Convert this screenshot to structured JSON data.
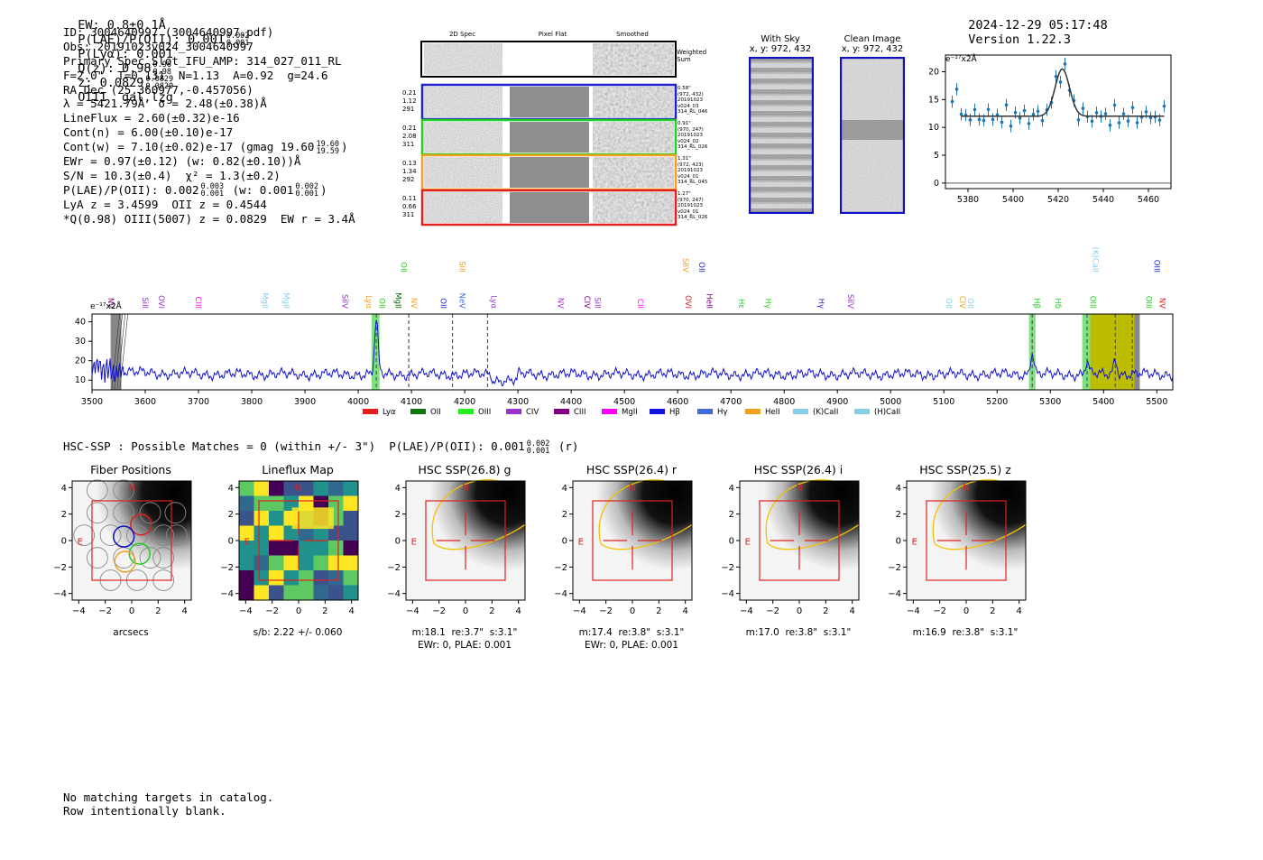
{
  "header": {
    "ew": "EW: 0.8±0.1Å",
    "plae_label": "P(LAE)/P(OII): 0.001",
    "plae_hi": "0.002",
    "plae_lo": "0.001",
    "plya": "P(Lyα): 0.001",
    "q_label": "Q(z): 0.98",
    "q_hi": "0.98",
    "q_lo": "0.98",
    "z_label": "z: 0.0829",
    "z_hi": "0.0829",
    "z_lo": "0.0829",
    "classification": "OIII  gal,lzg",
    "timestamp": "2024-12-29 05:17:48",
    "version": "Version 1.22.3"
  },
  "info": {
    "line1": "ID: 3004640997 (3004640997.pdf)",
    "line2": "Obs: 20191023v024_3004640997",
    "line3": "Primary Spec_Slot_IFU_AMP: 314_027_011_RL",
    "line4": "F=2.0\"  T=0.131  N=1.13  A=0.92  g=24.6",
    "line5": "RA,Dec (25.360977,-0.457056)",
    "line6": "λ = 5421.79Å  σ = 2.48(±0.38)Å",
    "line7": "LineFlux = 2.60(±0.32)e-16",
    "line8": "Cont(n) = 6.00(±0.10)e-17",
    "line9": "Cont(w) = 7.10(±0.02)e-17 (gmag 19.60",
    "line9_hi": "19.60",
    "line9_lo": "19.59",
    "line9_end": ")",
    "line10": "EWr = 0.97(±0.12) (w: 0.82(±0.10))Å",
    "line11": "S/N = 10.3(±0.4)  χ² = 1.3(±0.2)",
    "line12": "P(LAE)/P(OII): 0.002",
    "line12_hi": "0.003",
    "line12_lo": "0.001",
    "line12_mid": "(w: 0.001",
    "line12_hi2": "0.002",
    "line12_lo2": "0.001",
    "line12_end": ")",
    "line13": "LyA z = 3.4599  OII z = 0.4544",
    "line14": "*Q(0.98) OIII(5007) z = 0.0829  EW r = 3.4Å"
  },
  "cutouts": {
    "col_2d": "2D Spec",
    "col_flat": "Pixel Flat",
    "col_smooth": "Smoothed",
    "weighted": "Weighted Sum",
    "rows": [
      {
        "left1": "0.21",
        "left2": "1.12",
        "left3": "291",
        "r1": "0.58\"",
        "r2": "(972, 432)",
        "r3": "20191023",
        "r4": "v024_03",
        "r5": "314_RL_046",
        "color": "#1f1fd0"
      },
      {
        "left1": "0.21",
        "left2": "2.08",
        "left3": "311",
        "r1": "0.91\"",
        "r2": "(970, 247)",
        "r3": "20191023",
        "r4": "v024_02",
        "r5": "314_RL_026",
        "color": "#22cc22"
      },
      {
        "left1": "0.13",
        "left2": "1.34",
        "left3": "292",
        "r1": "1.31\"",
        "r2": "(972, 423)",
        "r3": "20191023",
        "r4": "v024_01",
        "r5": "314_RL_045",
        "color": "#f0a020"
      },
      {
        "left1": "0.11",
        "left2": "0.66",
        "left3": "311",
        "r1": "1.27\"",
        "r2": "(970, 247)",
        "r3": "20191023",
        "r4": "v024_01",
        "r5": "314_RL_026",
        "color": "#e02020"
      }
    ]
  },
  "sky_panels": {
    "with_sky": "With Sky",
    "with_sky_xy": "x, y: 972, 432",
    "clean": "Clean Image",
    "clean_xy": "x, y: 972, 432"
  },
  "zoom_plot": {
    "unit": "e⁻¹⁷x2Å",
    "xticks": [
      "5380",
      "5400",
      "5420",
      "5440",
      "5460"
    ],
    "yticks": [
      "0",
      "5",
      "10",
      "15",
      "20"
    ]
  },
  "spectrum": {
    "unit": "e⁻¹⁷x2Å",
    "xticks": [
      "3500",
      "3600",
      "3700",
      "3800",
      "3900",
      "4000",
      "4100",
      "4200",
      "4300",
      "4400",
      "4500",
      "4600",
      "4700",
      "4800",
      "4900",
      "5000",
      "5100",
      "5200",
      "5300",
      "5400",
      "5500"
    ],
    "yticks": [
      "10",
      "20",
      "30",
      "40"
    ],
    "line_labels": [
      {
        "t": "NV",
        "c": "#800080",
        "w": 3525
      },
      {
        "t": "SiII",
        "c": "#9932cc",
        "w": 3590
      },
      {
        "t": "OVI",
        "c": "#9932cc",
        "w": 3620
      },
      {
        "t": "CIII",
        "c": "#ff00ff",
        "w": 3690
      },
      {
        "t": "MgII",
        "c": "#87ceeb",
        "w": 3815
      },
      {
        "t": "MgII",
        "c": "#87ceeb",
        "w": 3855
      },
      {
        "t": "SiIV",
        "c": "#9932cc",
        "w": 3965
      },
      {
        "t": "Lyα",
        "c": "#f0a020",
        "w": 4010
      },
      {
        "t": "OII",
        "c": "#22cc22",
        "w": 4035
      },
      {
        "t": "MgII",
        "c": "#006400",
        "w": 4065
      },
      {
        "t": "NV",
        "c": "#f0a020",
        "w": 4095
      },
      {
        "t": "OII",
        "c": "#1f1fd0",
        "w": 4150
      },
      {
        "t": "NeV",
        "c": "#4169e1",
        "w": 4185
      },
      {
        "t": "Lyα",
        "c": "#9932cc",
        "w": 4245
      },
      {
        "t": "NV",
        "c": "#9932cc",
        "w": 4370
      },
      {
        "t": "CIV",
        "c": "#800080",
        "w": 4420
      },
      {
        "t": "SiII",
        "c": "#9932cc",
        "w": 4440
      },
      {
        "t": "CII",
        "c": "#ff00ff",
        "w": 4520
      },
      {
        "t": "OVI",
        "c": "#e02020",
        "w": 4610
      },
      {
        "t": "HeII",
        "c": "#800080",
        "w": 4650
      },
      {
        "t": "Hε",
        "c": "#22cc22",
        "w": 4710
      },
      {
        "t": "Hγ",
        "c": "#22cc22",
        "w": 4760
      },
      {
        "t": "Hγ",
        "c": "#1f1fd0",
        "w": 4860
      },
      {
        "t": "SiIV",
        "c": "#9932cc",
        "w": 4915
      },
      {
        "t": "OII",
        "c": "#87ceeb",
        "w": 5100
      },
      {
        "t": "CIV",
        "c": "#f0a020",
        "w": 5125
      },
      {
        "t": "OII",
        "c": "#87ceeb",
        "w": 5140
      },
      {
        "t": "Hβ",
        "c": "#22cc22",
        "w": 5265
      },
      {
        "t": "Hδ",
        "c": "#22cc22",
        "w": 5305
      },
      {
        "t": "OIII",
        "c": "#22cc22",
        "w": 5370
      },
      {
        "t": "OIII",
        "c": "#22cc22",
        "w": 5475
      },
      {
        "t": "NV",
        "c": "#e02020",
        "w": 5500
      }
    ],
    "upper_labels": [
      {
        "t": "OII",
        "c": "#22cc22",
        "w": 4075
      },
      {
        "t": "SiII",
        "c": "#f0a020",
        "w": 4185
      },
      {
        "t": "SiIV",
        "c": "#f0a020",
        "w": 4605
      },
      {
        "t": "OII",
        "c": "#1f1fd0",
        "w": 4635
      },
      {
        "t": "(K)CaII",
        "c": "#87ceeb",
        "w": 5375
      },
      {
        "t": "OIII",
        "c": "#1f1fd0",
        "w": 5490
      }
    ],
    "legend": [
      {
        "t": "Lyα",
        "c": "#e02020"
      },
      {
        "t": "OII",
        "c": "#0a7a0a"
      },
      {
        "t": "OIII",
        "c": "#22ee22"
      },
      {
        "t": "CIV",
        "c": "#9932cc"
      },
      {
        "t": "CIII",
        "c": "#800080"
      },
      {
        "t": "MgII",
        "c": "#ff00ff"
      },
      {
        "t": "Hβ",
        "c": "#1010e0"
      },
      {
        "t": "Hγ",
        "c": "#4169e1"
      },
      {
        "t": "HeII",
        "c": "#f0a020"
      },
      {
        "t": "(K)CaII",
        "c": "#87ceeb"
      },
      {
        "t": "(H)CaII",
        "c": "#87ceeb"
      }
    ]
  },
  "hsc_line": {
    "text": "HSC-SSP : Possible Matches = 0 (within +/- 3\")  P(LAE)/P(OII): 0.001",
    "hi": "0.002",
    "lo": "0.001",
    "end": "(r)"
  },
  "bottom_panels": [
    {
      "title": "Fiber Positions",
      "cap1": "arcsecs",
      "cap2": ""
    },
    {
      "title": "Lineflux Map",
      "cap1": "s/b: 2.22 +/- 0.060",
      "cap2": ""
    },
    {
      "title": "HSC SSP(26.8) g",
      "cap1": "m:18.1  re:3.7\"  s:3.1\"",
      "cap2": "EWr: 0, PLAE: 0.001"
    },
    {
      "title": "HSC SSP(26.4) r",
      "cap1": "m:17.4  re:3.8\"  s:3.1\"",
      "cap2": "EWr: 0, PLAE: 0.001"
    },
    {
      "title": "HSC SSP(26.4) i",
      "cap1": "m:17.0  re:3.8\"  s:3.1\"",
      "cap2": ""
    },
    {
      "title": "HSC SSP(25.5) z",
      "cap1": "m:16.9  re:3.8\"  s:3.1\"",
      "cap2": ""
    }
  ],
  "cutout_axes": {
    "ticks": [
      "4",
      "2",
      "0",
      "−2",
      "−4"
    ],
    "xticks": [
      "−4",
      "−2",
      "0",
      "2",
      "4"
    ],
    "north": "N",
    "east": "E"
  },
  "footer": {
    "line1": "No matching targets in catalog.",
    "line2": "Row intentionally blank."
  }
}
